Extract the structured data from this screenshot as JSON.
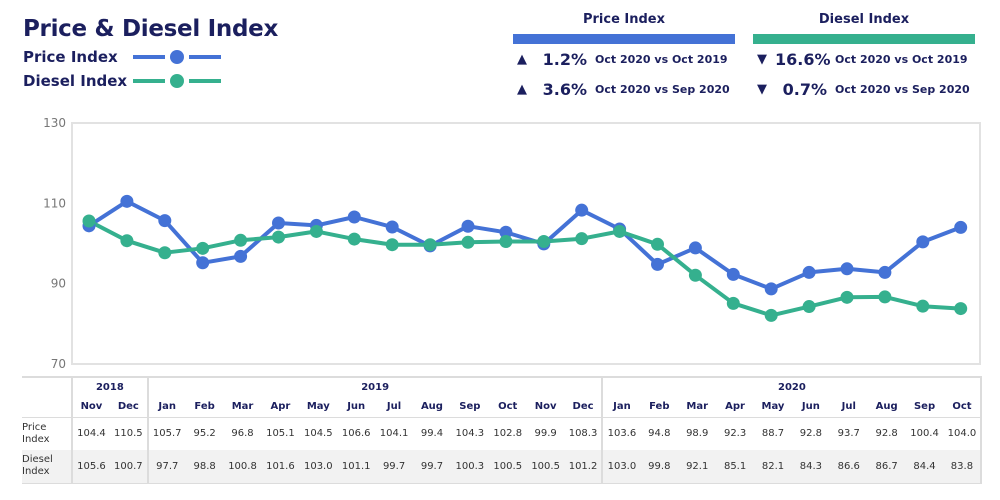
{
  "header": {
    "title": "Price & Diesel Index",
    "legend": [
      {
        "label": "Price Index",
        "color": "#4472d6"
      },
      {
        "label": "Diesel Index",
        "color": "#35b08e"
      }
    ]
  },
  "kpis": [
    {
      "title": "Price Index",
      "color": "#4472d6",
      "rows": [
        {
          "direction": "up",
          "arrow": "▲",
          "value": "1.2%",
          "comparison": "Oct 2020 vs Oct 2019"
        },
        {
          "direction": "up",
          "arrow": "▲",
          "value": "3.6%",
          "comparison": "Oct 2020 vs Sep 2020"
        }
      ]
    },
    {
      "title": "Diesel Index",
      "color": "#35b08e",
      "rows": [
        {
          "direction": "down",
          "arrow": "▼",
          "value": "16.6%",
          "comparison": "Oct 2020 vs Oct 2019"
        },
        {
          "direction": "down",
          "arrow": "▼",
          "value": "0.7%",
          "comparison": "Oct 2020 vs Sep 2020"
        }
      ]
    }
  ],
  "chart_data": {
    "type": "line",
    "title": "Price & Diesel Index",
    "xlabel": "",
    "ylabel": "",
    "ylim": [
      70,
      130
    ],
    "yticks": [
      70,
      90,
      110,
      130
    ],
    "grid": false,
    "legend_position": "top-left",
    "years": [
      {
        "label": "2018",
        "span": 2
      },
      {
        "label": "2019",
        "span": 12
      },
      {
        "label": "2020",
        "span": 10
      }
    ],
    "categories": [
      "Nov",
      "Dec",
      "Jan",
      "Feb",
      "Mar",
      "Apr",
      "May",
      "Jun",
      "Jul",
      "Aug",
      "Sep",
      "Oct",
      "Nov",
      "Dec",
      "Jan",
      "Feb",
      "Mar",
      "Apr",
      "May",
      "Jun",
      "Jul",
      "Aug",
      "Sep",
      "Oct"
    ],
    "series": [
      {
        "name": "Price Index",
        "row_label": "Price Index",
        "color": "#4472d6",
        "values": [
          104.4,
          110.5,
          105.7,
          95.2,
          96.8,
          105.1,
          104.5,
          106.6,
          104.1,
          99.4,
          104.3,
          102.8,
          99.9,
          108.3,
          103.6,
          94.8,
          98.9,
          92.3,
          88.7,
          92.8,
          93.7,
          92.8,
          100.4,
          104.0
        ]
      },
      {
        "name": "Diesel Index",
        "row_label": "Diesel Index",
        "color": "#35b08e",
        "values": [
          105.6,
          100.7,
          97.7,
          98.8,
          100.8,
          101.6,
          103.0,
          101.1,
          99.7,
          99.7,
          100.3,
          100.5,
          100.5,
          101.2,
          103.0,
          99.8,
          92.1,
          85.1,
          82.1,
          84.3,
          86.6,
          86.7,
          84.4,
          83.8
        ]
      }
    ]
  }
}
